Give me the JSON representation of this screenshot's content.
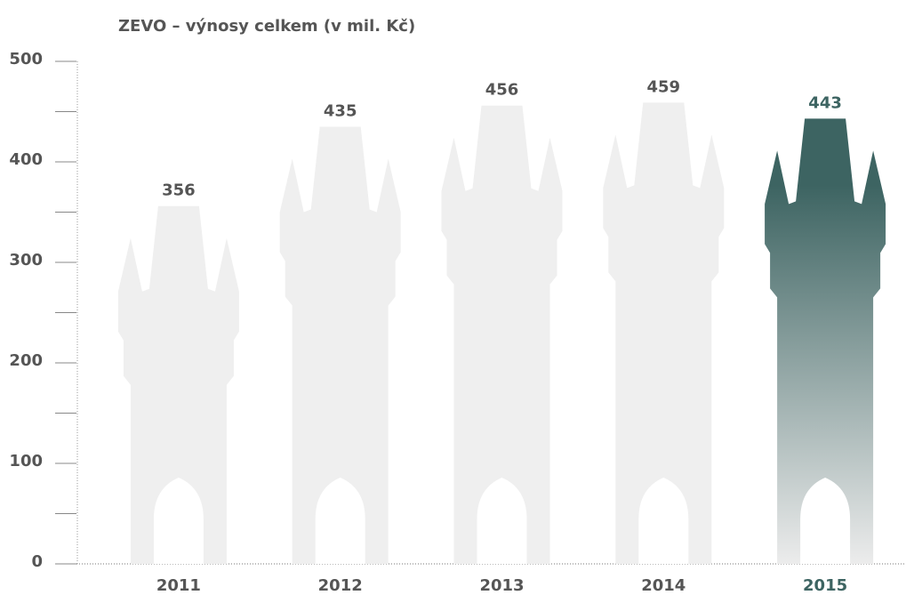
{
  "chart_data": {
    "type": "pictogram-bar",
    "title": "ZEVO – výnosy celkem (v mil. Kč)",
    "categories": [
      "2011",
      "2012",
      "2013",
      "2014",
      "2015"
    ],
    "values": [
      356,
      435,
      456,
      459,
      443
    ],
    "colors": [
      "#efefef",
      "#efefef",
      "#efefef",
      "#efefef",
      "#3d6462"
    ],
    "ylim": [
      0,
      500
    ],
    "yticks": [
      0,
      100,
      200,
      300,
      400,
      500
    ],
    "yminor": [
      50,
      150,
      250,
      350,
      450
    ]
  }
}
